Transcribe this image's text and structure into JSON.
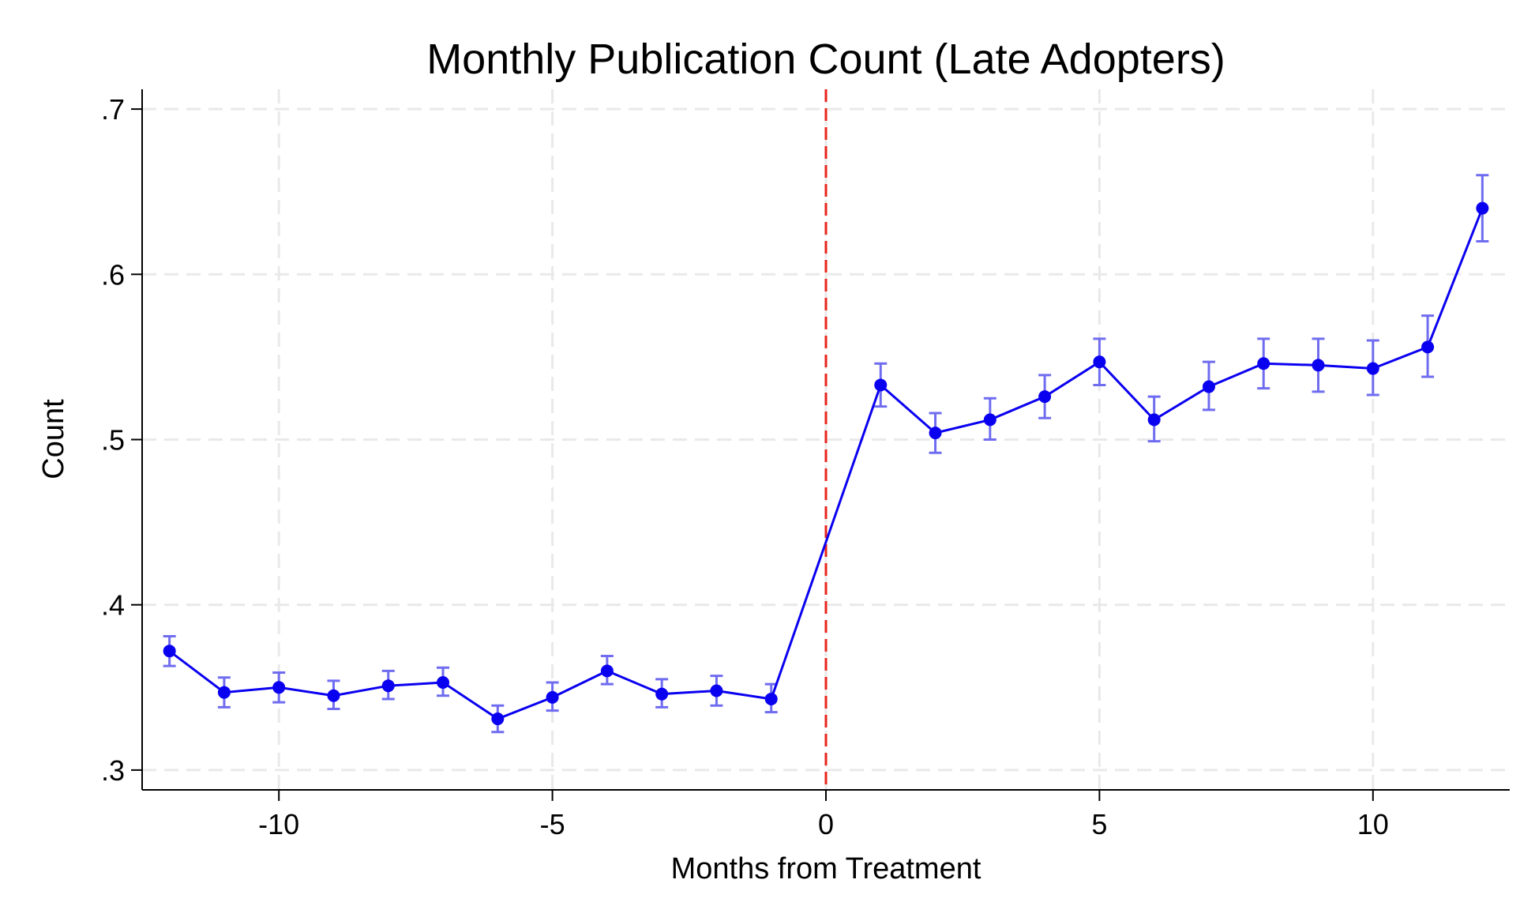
{
  "chart_data": {
    "type": "line",
    "title": "Monthly Publication Count (Late Adopters)",
    "xlabel": "Months from Treatment",
    "ylabel": "Count",
    "xlim": [
      -12.5,
      12.5
    ],
    "ylim": [
      0.288,
      0.712
    ],
    "x_ticks": [
      -10,
      -5,
      0,
      5,
      10
    ],
    "x_tick_labels": [
      "-10",
      "-5",
      "0",
      "5",
      "10"
    ],
    "y_ticks": [
      0.3,
      0.4,
      0.5,
      0.6,
      0.7
    ],
    "y_tick_labels": [
      ".3",
      ".4",
      ".5",
      ".6",
      ".7"
    ],
    "grid": true,
    "reference_line": {
      "x": 0,
      "color": "#e8231b",
      "style": "dashed"
    },
    "colors": {
      "series": "#0a00f0",
      "error_bars": "#6f6cf0",
      "grid": "#e9e9e9"
    },
    "series": [
      {
        "x": [
          -12,
          -11,
          -10,
          -9,
          -8,
          -7,
          -6,
          -5,
          -4,
          -3,
          -2,
          -1,
          1,
          2,
          3,
          4,
          5,
          6,
          7,
          8,
          9,
          10,
          11,
          12
        ],
        "y": [
          0.372,
          0.347,
          0.35,
          0.345,
          0.351,
          0.353,
          0.331,
          0.344,
          0.36,
          0.346,
          0.348,
          0.343,
          0.533,
          0.504,
          0.512,
          0.526,
          0.547,
          0.512,
          0.532,
          0.546,
          0.545,
          0.543,
          0.556,
          0.64
        ],
        "ci_low": [
          0.363,
          0.338,
          0.341,
          0.337,
          0.343,
          0.345,
          0.323,
          0.336,
          0.352,
          0.338,
          0.339,
          0.335,
          0.52,
          0.492,
          0.5,
          0.513,
          0.533,
          0.499,
          0.518,
          0.531,
          0.529,
          0.527,
          0.538,
          0.62
        ],
        "ci_high": [
          0.381,
          0.356,
          0.359,
          0.354,
          0.36,
          0.362,
          0.339,
          0.353,
          0.369,
          0.355,
          0.357,
          0.352,
          0.546,
          0.516,
          0.525,
          0.539,
          0.561,
          0.526,
          0.547,
          0.561,
          0.561,
          0.56,
          0.575,
          0.66
        ]
      }
    ]
  }
}
